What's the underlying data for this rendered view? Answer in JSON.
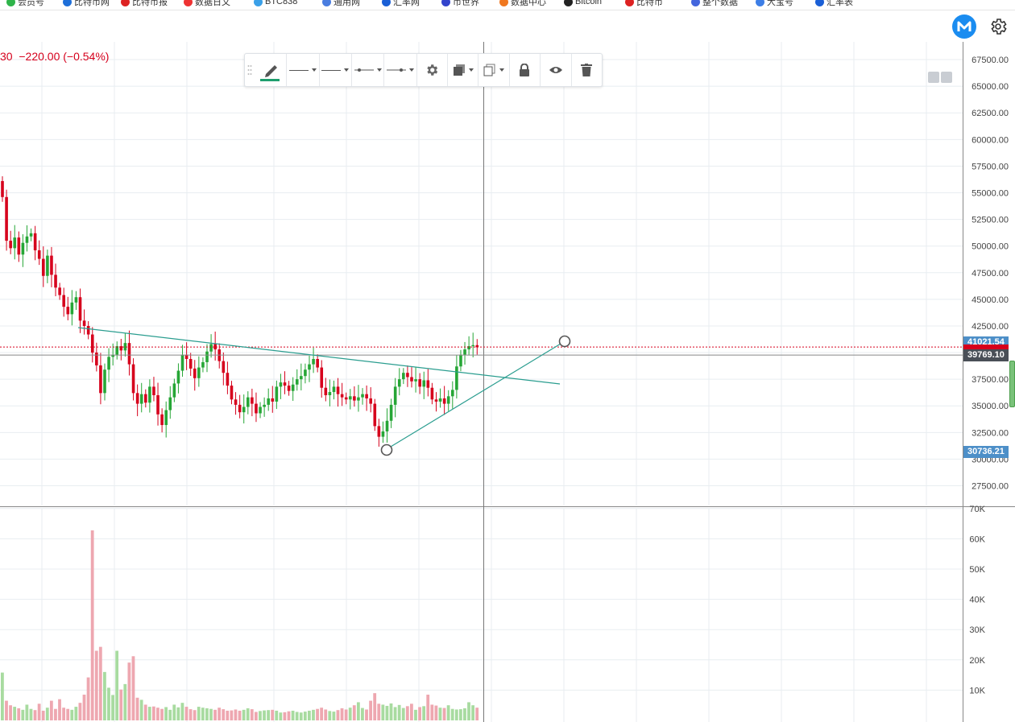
{
  "bookmarks": [
    {
      "label": "会员号",
      "color": "#2fb44a"
    },
    {
      "label": "比特币网",
      "color": "#1e6fd9"
    },
    {
      "label": "比特币报",
      "color": "#d22"
    },
    {
      "label": "数据日文",
      "color": "#e33"
    },
    {
      "label": "BTC838",
      "color": "#3aa0e8"
    },
    {
      "label": "通用网",
      "color": "#4a7de0"
    },
    {
      "label": "汇率网",
      "color": "#1a5fd6"
    },
    {
      "label": "币世界",
      "color": "#3344cc"
    },
    {
      "label": "数据中心",
      "color": "#f07820"
    },
    {
      "label": "Bitcoin",
      "color": "#222"
    },
    {
      "label": "比特币",
      "color": "#dd2222"
    },
    {
      "label": "整个数据",
      "color": "#4466dd"
    },
    {
      "label": "大宝号",
      "color": "#3d7ee6"
    },
    {
      "label": "汇率表",
      "color": "#1a5fd6"
    }
  ],
  "header": {
    "price_fragment": "30",
    "change": "−220.00 (−0.54%)"
  },
  "toolbar": {
    "items": [
      "brush",
      "line-style",
      "line-width",
      "line-start",
      "line-end",
      "settings",
      "fill",
      "clone",
      "lock",
      "visibility",
      "delete"
    ]
  },
  "colors": {
    "up": "#26a636",
    "down": "#d6001c",
    "grid": "#e8edf1",
    "trend": "#2a9d8f",
    "vol_up": "#a8dba0",
    "vol_down": "#eea7b0",
    "tag_blue": "#4d8fc8",
    "tag_dark": "#4a4f57",
    "tag_red": "#d6001c",
    "accent": "#1a8cf0"
  },
  "chart_data": [
    {
      "type": "candlestick",
      "title": "",
      "ylim": [
        25000,
        70000
      ],
      "y_ticks": [
        "27500.00",
        "30000.00",
        "32500.00",
        "35000.00",
        "37500.00",
        "40000.00",
        "42500.00",
        "45000.00",
        "47500.00",
        "50000.00",
        "52500.00",
        "55000.00",
        "57500.00",
        "60000.00",
        "62500.00",
        "65000.00",
        "67500.00"
      ],
      "close": [
        54600,
        50500,
        49800,
        50800,
        49200,
        50300,
        50900,
        51200,
        49600,
        48800,
        47200,
        49100,
        47300,
        46100,
        45400,
        44300,
        43600,
        44700,
        45200,
        43000,
        42500,
        41700,
        40000,
        38800,
        36200,
        38400,
        39600,
        39800,
        40600,
        40200,
        40900,
        38900,
        36200,
        35200,
        36100,
        35300,
        36800,
        36000,
        34200,
        33200,
        34600,
        35800,
        37100,
        38300,
        39800,
        39400,
        38500,
        37600,
        38600,
        39100,
        40100,
        40800,
        40300,
        39200,
        38100,
        36900,
        35600,
        35100,
        34400,
        34900,
        35800,
        35200,
        34300,
        34900,
        35100,
        35700,
        35400,
        36800,
        37200,
        36900,
        36400,
        37000,
        37500,
        37800,
        38400,
        38900,
        39400,
        38600,
        36700,
        36000,
        36300,
        36800,
        36100,
        35800,
        35600,
        35900,
        35500,
        35800,
        36100,
        35700,
        35200,
        33100,
        32100,
        32600,
        33600,
        35100,
        36800,
        37500,
        38100,
        37700,
        37300,
        37500,
        36800,
        37400,
        36700,
        35600,
        35400,
        35700,
        35200,
        35900,
        36500,
        38700,
        39800,
        40300,
        40600,
        40700,
        40500
      ],
      "volume_ylim": [
        0,
        70000
      ],
      "volume_ticks": [
        "10K",
        "20K",
        "30K",
        "40K",
        "50K",
        "60K",
        "70K"
      ],
      "volume": [
        15800,
        6500,
        5000,
        4500,
        4000,
        3500,
        5200,
        3800,
        3400,
        5500,
        3200,
        4200,
        6500,
        3800,
        7000,
        4200,
        3800,
        3500,
        4500,
        5800,
        8500,
        14200,
        62800,
        23000,
        24300,
        16000,
        10800,
        8400,
        23000,
        10200,
        12000,
        19100,
        21200,
        7500,
        6800,
        5200,
        4500,
        4600,
        4200,
        3800,
        4400,
        3500,
        5200,
        4300,
        5800,
        4500,
        3700,
        3400,
        4500,
        4200,
        4000,
        3800,
        3500,
        4200,
        3700,
        3200,
        3300,
        3600,
        3200,
        3500,
        4000,
        3700,
        2800,
        3100,
        3300,
        3400,
        3500,
        3200,
        2600,
        2700,
        3000,
        3200,
        2800,
        2600,
        2900,
        3200,
        3500,
        3800,
        4200,
        3600,
        3100,
        2900,
        3400,
        4000,
        3600,
        4200,
        5000,
        6000,
        4100,
        3600,
        6500,
        9000,
        5500,
        5200,
        4800,
        5600,
        4400,
        5100,
        4100,
        4700,
        5500,
        3500,
        4400,
        4700,
        8500,
        5200,
        4900,
        4200,
        4100,
        5000,
        3800,
        3600,
        3700,
        4000,
        6000,
        5000,
        4200
      ],
      "price_tags": [
        {
          "label": "41021.54",
          "value": 41021.54,
          "style": "tag_blue"
        },
        {
          "label": "39769.10",
          "value": 39769.1,
          "style": "tag_dark"
        },
        {
          "label": "30736.21",
          "value": 30736.21,
          "style": "tag_blue"
        }
      ],
      "crosshair_value": 39769.1,
      "last_price": 40300
    }
  ]
}
